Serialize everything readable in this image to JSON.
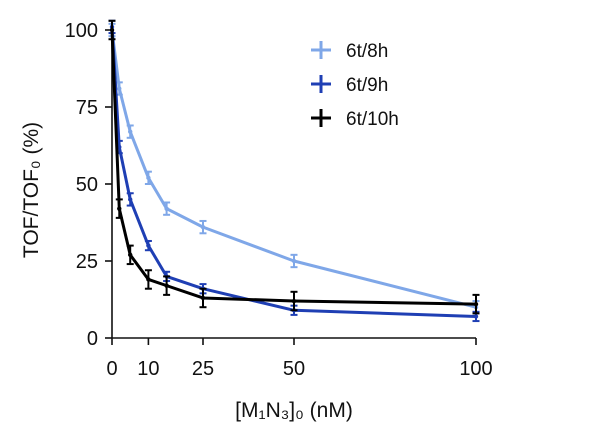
{
  "chart_data": {
    "type": "line",
    "xlabel": "[M₁N₃]₀ (nM)",
    "ylabel": "TOF/TOF₀ (%)",
    "xlim": [
      0,
      100
    ],
    "ylim": [
      0,
      100
    ],
    "xticks": [
      0,
      10,
      25,
      50,
      100
    ],
    "yticks": [
      0,
      25,
      50,
      75,
      100
    ],
    "grid": false,
    "legend_position": "top-right",
    "series": [
      {
        "name": "6t/8h",
        "color": "#7fa7e8",
        "x": [
          0,
          2,
          5,
          10,
          15,
          25,
          50,
          100
        ],
        "y": [
          100,
          81,
          67,
          52,
          42,
          36,
          25,
          10
        ],
        "err": [
          2,
          2,
          2,
          2,
          2,
          2,
          2,
          2
        ]
      },
      {
        "name": "6t/9h",
        "color": "#1f3fb4",
        "x": [
          0,
          2,
          5,
          10,
          15,
          25,
          50,
          100
        ],
        "y": [
          101,
          62,
          45,
          30,
          20,
          16,
          9,
          7
        ],
        "err": [
          2,
          2,
          2,
          1.5,
          1.5,
          1.5,
          1.5,
          1.5
        ]
      },
      {
        "name": "6t/10h",
        "color": "#000000",
        "x": [
          0,
          2,
          5,
          10,
          15,
          25,
          50,
          100
        ],
        "y": [
          100,
          42,
          27,
          19,
          17,
          13,
          12,
          11
        ],
        "err": [
          3,
          3,
          3,
          3,
          3,
          3,
          3,
          3
        ]
      }
    ]
  }
}
